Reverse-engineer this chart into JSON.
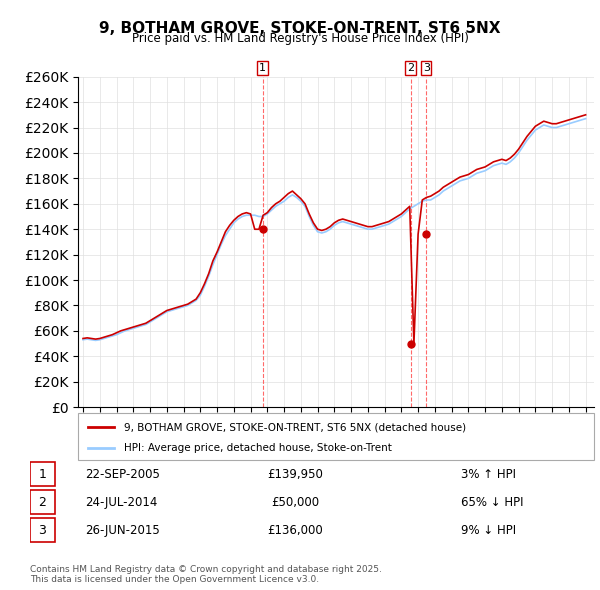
{
  "title": "9, BOTHAM GROVE, STOKE-ON-TRENT, ST6 5NX",
  "subtitle": "Price paid vs. HM Land Registry's House Price Index (HPI)",
  "ylabel": "",
  "ylim": [
    0,
    260000
  ],
  "yticks": [
    0,
    20000,
    40000,
    60000,
    80000,
    100000,
    120000,
    140000,
    160000,
    180000,
    200000,
    220000,
    240000,
    260000
  ],
  "xlim_start": 1995.0,
  "xlim_end": 2025.5,
  "line_color_property": "#cc0000",
  "line_color_hpi": "#99ccff",
  "transaction_color": "#cc0000",
  "vline_color": "#ff4444",
  "legend_label_property": "9, BOTHAM GROVE, STOKE-ON-TRENT, ST6 5NX (detached house)",
  "legend_label_hpi": "HPI: Average price, detached house, Stoke-on-Trent",
  "transactions": [
    {
      "num": 1,
      "date": "22-SEP-2005",
      "price": 139950,
      "pct": "3%",
      "dir": "↑",
      "year": 2005.72
    },
    {
      "num": 2,
      "date": "24-JUL-2014",
      "price": 50000,
      "pct": "65%",
      "dir": "↓",
      "year": 2014.56
    },
    {
      "num": 3,
      "date": "26-JUN-2015",
      "price": 136000,
      "pct": "9%",
      "dir": "↓",
      "year": 2015.49
    }
  ],
  "footer": "Contains HM Land Registry data © Crown copyright and database right 2025.\nThis data is licensed under the Open Government Licence v3.0.",
  "hpi_data": {
    "years": [
      1995.0,
      1995.25,
      1995.5,
      1995.75,
      1996.0,
      1996.25,
      1996.5,
      1996.75,
      1997.0,
      1997.25,
      1997.5,
      1997.75,
      1998.0,
      1998.25,
      1998.5,
      1998.75,
      1999.0,
      1999.25,
      1999.5,
      1999.75,
      2000.0,
      2000.25,
      2000.5,
      2000.75,
      2001.0,
      2001.25,
      2001.5,
      2001.75,
      2002.0,
      2002.25,
      2002.5,
      2002.75,
      2003.0,
      2003.25,
      2003.5,
      2003.75,
      2004.0,
      2004.25,
      2004.5,
      2004.75,
      2005.0,
      2005.25,
      2005.5,
      2005.75,
      2006.0,
      2006.25,
      2006.5,
      2006.75,
      2007.0,
      2007.25,
      2007.5,
      2007.75,
      2008.0,
      2008.25,
      2008.5,
      2008.75,
      2009.0,
      2009.25,
      2009.5,
      2009.75,
      2010.0,
      2010.25,
      2010.5,
      2010.75,
      2011.0,
      2011.25,
      2011.5,
      2011.75,
      2012.0,
      2012.25,
      2012.5,
      2012.75,
      2013.0,
      2013.25,
      2013.5,
      2013.75,
      2014.0,
      2014.25,
      2014.5,
      2014.75,
      2015.0,
      2015.25,
      2015.5,
      2015.75,
      2016.0,
      2016.25,
      2016.5,
      2016.75,
      2017.0,
      2017.25,
      2017.5,
      2017.75,
      2018.0,
      2018.25,
      2018.5,
      2018.75,
      2019.0,
      2019.25,
      2019.5,
      2019.75,
      2020.0,
      2020.25,
      2020.5,
      2020.75,
      2021.0,
      2021.25,
      2021.5,
      2021.75,
      2022.0,
      2022.25,
      2022.5,
      2022.75,
      2023.0,
      2023.25,
      2023.5,
      2023.75,
      2024.0,
      2024.25,
      2024.5,
      2024.75,
      2025.0
    ],
    "values": [
      53000,
      53500,
      53000,
      52500,
      53000,
      54000,
      55000,
      56000,
      57000,
      58500,
      60000,
      61000,
      62000,
      63000,
      64000,
      65000,
      67000,
      69000,
      71000,
      73000,
      75000,
      76000,
      77000,
      78000,
      79000,
      80000,
      82000,
      84000,
      88000,
      95000,
      103000,
      112000,
      120000,
      128000,
      135000,
      140000,
      145000,
      148000,
      150000,
      151000,
      151000,
      151000,
      150000,
      150000,
      152000,
      155000,
      158000,
      160000,
      162000,
      165000,
      167000,
      165000,
      162000,
      158000,
      150000,
      143000,
      138000,
      137000,
      138000,
      140000,
      143000,
      145000,
      146000,
      145000,
      144000,
      143000,
      142000,
      141000,
      140000,
      140000,
      141000,
      142000,
      143000,
      144000,
      146000,
      148000,
      150000,
      153000,
      156000,
      158000,
      160000,
      162000,
      163000,
      163000,
      165000,
      167000,
      170000,
      172000,
      174000,
      176000,
      178000,
      179000,
      180000,
      182000,
      184000,
      185000,
      186000,
      188000,
      190000,
      191000,
      192000,
      191000,
      193000,
      196000,
      200000,
      205000,
      210000,
      214000,
      218000,
      220000,
      222000,
      221000,
      220000,
      220000,
      221000,
      222000,
      223000,
      224000,
      225000,
      226000,
      227000
    ]
  },
  "property_data": {
    "years": [
      1995.0,
      1995.25,
      1995.5,
      1995.75,
      1996.0,
      1996.25,
      1996.5,
      1996.75,
      1997.0,
      1997.25,
      1997.5,
      1997.75,
      1998.0,
      1998.25,
      1998.5,
      1998.75,
      1999.0,
      1999.25,
      1999.5,
      1999.75,
      2000.0,
      2000.25,
      2000.5,
      2000.75,
      2001.0,
      2001.25,
      2001.5,
      2001.75,
      2002.0,
      2002.25,
      2002.5,
      2002.75,
      2003.0,
      2003.25,
      2003.5,
      2003.75,
      2004.0,
      2004.25,
      2004.5,
      2004.75,
      2005.0,
      2005.25,
      2005.5,
      2005.75,
      2006.0,
      2006.25,
      2006.5,
      2006.75,
      2007.0,
      2007.25,
      2007.5,
      2007.75,
      2008.0,
      2008.25,
      2008.5,
      2008.75,
      2009.0,
      2009.25,
      2009.5,
      2009.75,
      2010.0,
      2010.25,
      2010.5,
      2010.75,
      2011.0,
      2011.25,
      2011.5,
      2011.75,
      2012.0,
      2012.25,
      2012.5,
      2012.75,
      2013.0,
      2013.25,
      2013.5,
      2013.75,
      2014.0,
      2014.25,
      2014.5,
      2014.75,
      2015.0,
      2015.25,
      2015.5,
      2015.75,
      2016.0,
      2016.25,
      2016.5,
      2016.75,
      2017.0,
      2017.25,
      2017.5,
      2017.75,
      2018.0,
      2018.25,
      2018.5,
      2018.75,
      2019.0,
      2019.25,
      2019.5,
      2019.75,
      2020.0,
      2020.25,
      2020.5,
      2020.75,
      2021.0,
      2021.25,
      2021.5,
      2021.75,
      2022.0,
      2022.25,
      2022.5,
      2022.75,
      2023.0,
      2023.25,
      2023.5,
      2023.75,
      2024.0,
      2024.25,
      2024.5,
      2024.75,
      2025.0
    ],
    "values": [
      54000,
      54500,
      54000,
      53500,
      54000,
      55000,
      56000,
      57000,
      58500,
      60000,
      61000,
      62000,
      63000,
      64000,
      65000,
      66000,
      68000,
      70000,
      72000,
      74000,
      76000,
      77000,
      78000,
      79000,
      80000,
      81000,
      83000,
      85000,
      90000,
      97000,
      105000,
      115000,
      122000,
      130000,
      138000,
      143000,
      147000,
      150000,
      152000,
      153000,
      152000,
      139950,
      139950,
      151000,
      153000,
      157000,
      160000,
      162000,
      165000,
      168000,
      170000,
      167000,
      164000,
      160000,
      152000,
      145000,
      140000,
      139000,
      140000,
      142000,
      145000,
      147000,
      148000,
      147000,
      146000,
      145000,
      144000,
      143000,
      142000,
      142000,
      143000,
      144000,
      145000,
      146000,
      148000,
      150000,
      152000,
      155000,
      158000,
      50000,
      136000,
      163000,
      165000,
      166000,
      168000,
      170000,
      173000,
      175000,
      177000,
      179000,
      181000,
      182000,
      183000,
      185000,
      187000,
      188000,
      189000,
      191000,
      193000,
      194000,
      195000,
      194000,
      196000,
      199000,
      203000,
      208000,
      213000,
      217000,
      221000,
      223000,
      225000,
      224000,
      223000,
      223000,
      224000,
      225000,
      226000,
      227000,
      228000,
      229000,
      230000
    ]
  }
}
